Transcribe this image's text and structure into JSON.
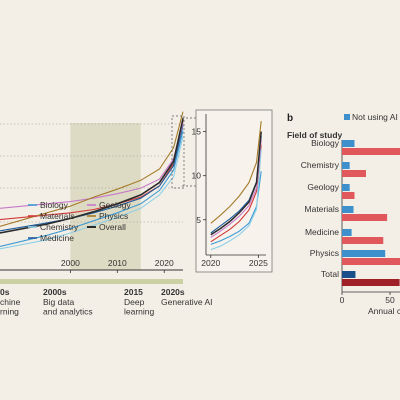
{
  "colors": {
    "background": "#f4efe6",
    "era_band": "#dedbc4",
    "timeline_bar": "#ccd1a4",
    "biology": "#3c9ad6",
    "materials": "#d23a3a",
    "chemistry": "#8ecfe8",
    "medicine": "#1f5c9e",
    "geology": "#c779c8",
    "physics": "#a57b2a",
    "overall": "#2b2b2b",
    "not_using_ai": "#3e90cc",
    "using_ai": "#e0585c",
    "total_not": "#1a4f8c",
    "total_using": "#a02028"
  },
  "panel_b_label": "b",
  "timeline": {
    "eras": [
      {
        "label": "0s",
        "desc": "chine\nrning"
      },
      {
        "label": "2000s",
        "desc": "Big data\nand analytics"
      },
      {
        "label": "2015",
        "desc": "Deep\nlearning"
      },
      {
        "label": "2020s",
        "desc": "Generative AI"
      }
    ]
  },
  "chart_data": [
    {
      "type": "line",
      "panel": "a-main",
      "x_ticks": [
        "2000",
        "2010",
        "2020"
      ],
      "xlim": [
        1985,
        2024
      ],
      "series": [
        {
          "name": "Biology",
          "color_key": "biology",
          "x": [
            1985,
            1995,
            2000,
            2005,
            2010,
            2015,
            2019,
            2022,
            2024
          ],
          "y": [
            1.2,
            2.2,
            2.8,
            3.5,
            4.2,
            5.0,
            6.2,
            8.0,
            11.5
          ]
        },
        {
          "name": "Materials",
          "color_key": "materials",
          "x": [
            1985,
            1995,
            2000,
            2005,
            2010,
            2015,
            2019,
            2022,
            2024
          ],
          "y": [
            3.6,
            4.0,
            4.2,
            4.5,
            5.0,
            5.6,
            6.6,
            8.6,
            12.4
          ]
        },
        {
          "name": "Chemistry",
          "color_key": "chemistry",
          "x": [
            1985,
            1995,
            2000,
            2005,
            2010,
            2015,
            2019,
            2022,
            2024
          ],
          "y": [
            1.0,
            1.8,
            2.4,
            3.1,
            3.8,
            4.6,
            5.8,
            7.4,
            11.0
          ]
        },
        {
          "name": "Medicine",
          "color_key": "medicine",
          "x": [
            1985,
            1995,
            2000,
            2005,
            2010,
            2015,
            2019,
            2022,
            2024
          ],
          "y": [
            2.6,
            3.3,
            3.7,
            4.2,
            4.8,
            5.5,
            6.6,
            8.4,
            12.0
          ]
        },
        {
          "name": "Geology",
          "color_key": "geology",
          "x": [
            1985,
            1995,
            2000,
            2005,
            2010,
            2015,
            2019,
            2022,
            2024
          ],
          "y": [
            4.6,
            5.0,
            5.2,
            5.5,
            5.9,
            6.4,
            7.2,
            9.0,
            12.2
          ]
        },
        {
          "name": "Physics",
          "color_key": "physics",
          "x": [
            1985,
            1995,
            2000,
            2005,
            2010,
            2015,
            2019,
            2022,
            2024
          ],
          "y": [
            3.0,
            4.2,
            4.8,
            5.6,
            6.3,
            7.1,
            8.1,
            10.0,
            13.2
          ]
        },
        {
          "name": "Overall",
          "color_key": "overall",
          "x": [
            1985,
            1995,
            2000,
            2005,
            2010,
            2015,
            2019,
            2022,
            2024
          ],
          "y": [
            2.4,
            3.2,
            3.7,
            4.3,
            5.0,
            5.8,
            6.9,
            8.8,
            12.6
          ]
        }
      ]
    },
    {
      "type": "line",
      "panel": "a-inset",
      "x_ticks": [
        "2020",
        "2025"
      ],
      "y_ticks": [
        "5",
        "10",
        "15"
      ],
      "xlim": [
        2019.5,
        2025.8
      ],
      "ylim": [
        1,
        17
      ],
      "series": [
        {
          "name": "Biology",
          "color_key": "biology",
          "x": [
            2020,
            2021,
            2022,
            2023,
            2024,
            2024.8,
            2025.3
          ],
          "y": [
            2.2,
            2.6,
            3.1,
            3.7,
            4.6,
            6.5,
            10.5
          ]
        },
        {
          "name": "Materials",
          "color_key": "materials",
          "x": [
            2020,
            2021,
            2022,
            2023,
            2024,
            2024.8,
            2025.3
          ],
          "y": [
            2.5,
            3.2,
            3.9,
            4.8,
            6.1,
            8.2,
            13.5
          ]
        },
        {
          "name": "Chemistry",
          "color_key": "chemistry",
          "x": [
            2020,
            2021,
            2022,
            2023,
            2024,
            2024.8,
            2025.3
          ],
          "y": [
            1.6,
            2.0,
            2.6,
            3.3,
            4.3,
            6.2,
            13.0
          ]
        },
        {
          "name": "Medicine",
          "color_key": "medicine",
          "x": [
            2020,
            2021,
            2022,
            2023,
            2024,
            2024.8,
            2025.3
          ],
          "y": [
            3.5,
            4.3,
            5.1,
            6.0,
            7.2,
            9.3,
            14.5
          ]
        },
        {
          "name": "Geology",
          "color_key": "geology",
          "x": [
            2020,
            2021,
            2022,
            2023,
            2024,
            2024.8,
            2025.3
          ],
          "y": [
            3.0,
            3.7,
            4.5,
            5.4,
            6.6,
            8.6,
            14.0
          ]
        },
        {
          "name": "Physics",
          "color_key": "physics",
          "x": [
            2020,
            2021,
            2022,
            2023,
            2024,
            2024.8,
            2025.3
          ],
          "y": [
            4.6,
            5.5,
            6.5,
            7.7,
            9.2,
            11.5,
            16.2
          ]
        },
        {
          "name": "Overall",
          "color_key": "overall",
          "x": [
            2020,
            2021,
            2022,
            2023,
            2024,
            2024.8,
            2025.3
          ],
          "y": [
            3.3,
            4.0,
            4.8,
            5.8,
            7.0,
            9.2,
            15.0
          ]
        }
      ]
    },
    {
      "type": "bar",
      "panel": "b",
      "y_title": "Field of study",
      "legend": [
        {
          "name": "Not using AI",
          "color_key": "not_using_ai"
        }
      ],
      "x_ticks": [
        "0",
        "50"
      ],
      "x_label_partial": "Annual c",
      "categories": [
        "Biology",
        "Chemistry",
        "Geology",
        "Materials",
        "Medicine",
        "Physics",
        "Total"
      ],
      "series": [
        {
          "name": "Not using AI",
          "values": [
            13,
            8,
            8,
            12,
            10,
            45,
            14
          ]
        },
        {
          "name": "Using AI",
          "values": [
            105,
            25,
            13,
            47,
            43,
            105,
            60
          ]
        }
      ]
    }
  ]
}
